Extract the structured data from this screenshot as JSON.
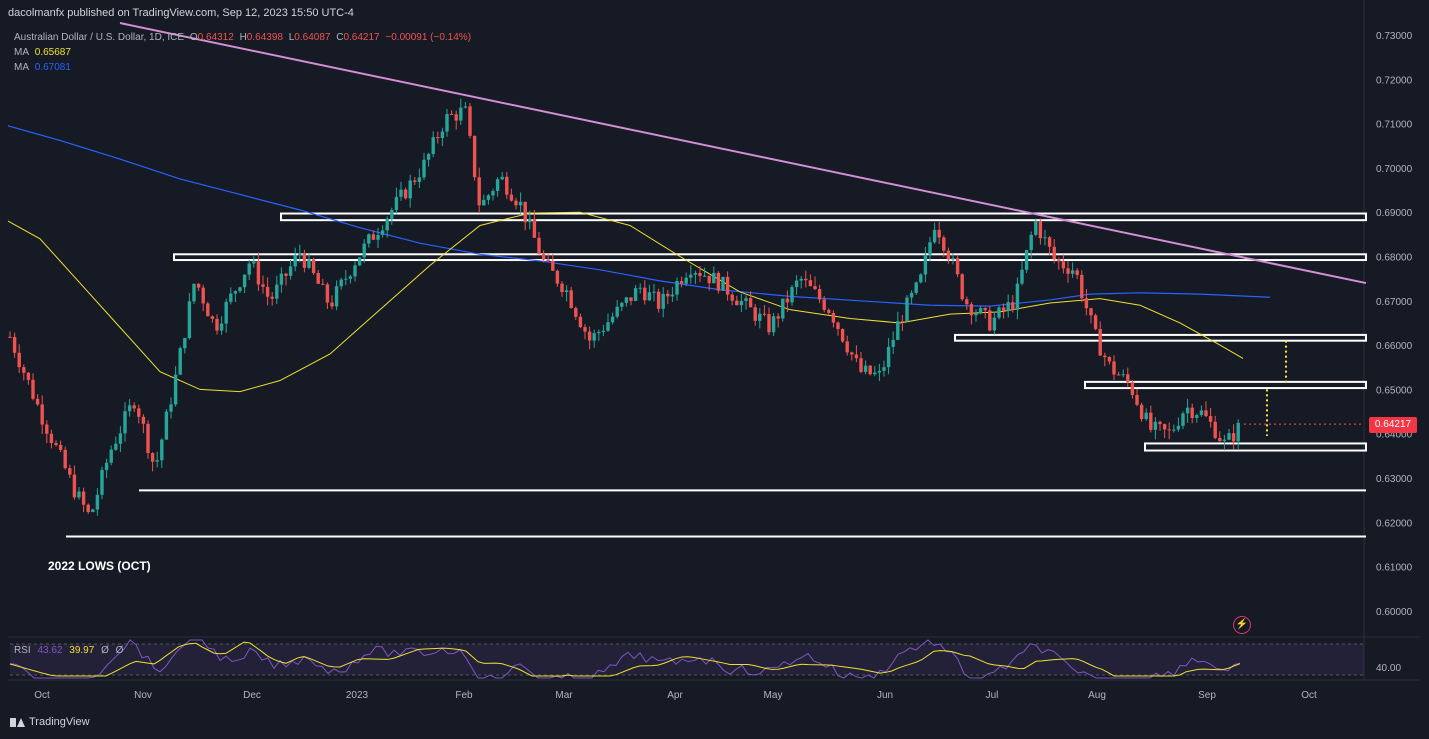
{
  "header": {
    "publisher": "dacolmanfx published on TradingView.com, Sep 12, 2023 15:50 UTC-4"
  },
  "legend": {
    "symbol": "Australian Dollar / U.S. Dollar, 1D, ICE",
    "o_label": "O",
    "o": "0.64312",
    "h_label": "H",
    "h": "0.64398",
    "l_label": "L",
    "l": "0.64087",
    "c_label": "C",
    "c": "0.64217",
    "change": "−0.00091 (−0.14%)",
    "ma1_label": "MA",
    "ma1": "0.65687",
    "ma2_label": "MA",
    "ma2": "0.67081"
  },
  "rsi": {
    "label": "RSI",
    "value": "43.62",
    "ma": "39.97",
    "d1": "Ø",
    "d2": "Ø",
    "level": "40.00"
  },
  "price_axis": [
    "0.73000",
    "0.72000",
    "0.71000",
    "0.70000",
    "0.69000",
    "0.68000",
    "0.67000",
    "0.66000",
    "0.65000",
    "0.64000",
    "0.63000",
    "0.62000",
    "0.61000",
    "0.60000"
  ],
  "last_price": "0.64217",
  "time_axis": [
    "Oct",
    "Nov",
    "Dec",
    "2023",
    "Feb",
    "Mar",
    "Apr",
    "May",
    "Jun",
    "Jul",
    "Aug",
    "Sep",
    "Oct"
  ],
  "annotation": "2022 LOWS (OCT)",
  "footer": {
    "brand": "TradingView"
  },
  "icons": {
    "logo": "tradingview-logo-icon",
    "bolt": "lightning-icon"
  },
  "colors": {
    "up": "#26a69a",
    "down": "#ef5350",
    "ma50": "#f0e030",
    "ma200": "#2962ff",
    "trendline": "#d48fd4",
    "levels": "#ffffff",
    "projection": "#ffeb3b",
    "rsi": "#7e57c2"
  }
}
